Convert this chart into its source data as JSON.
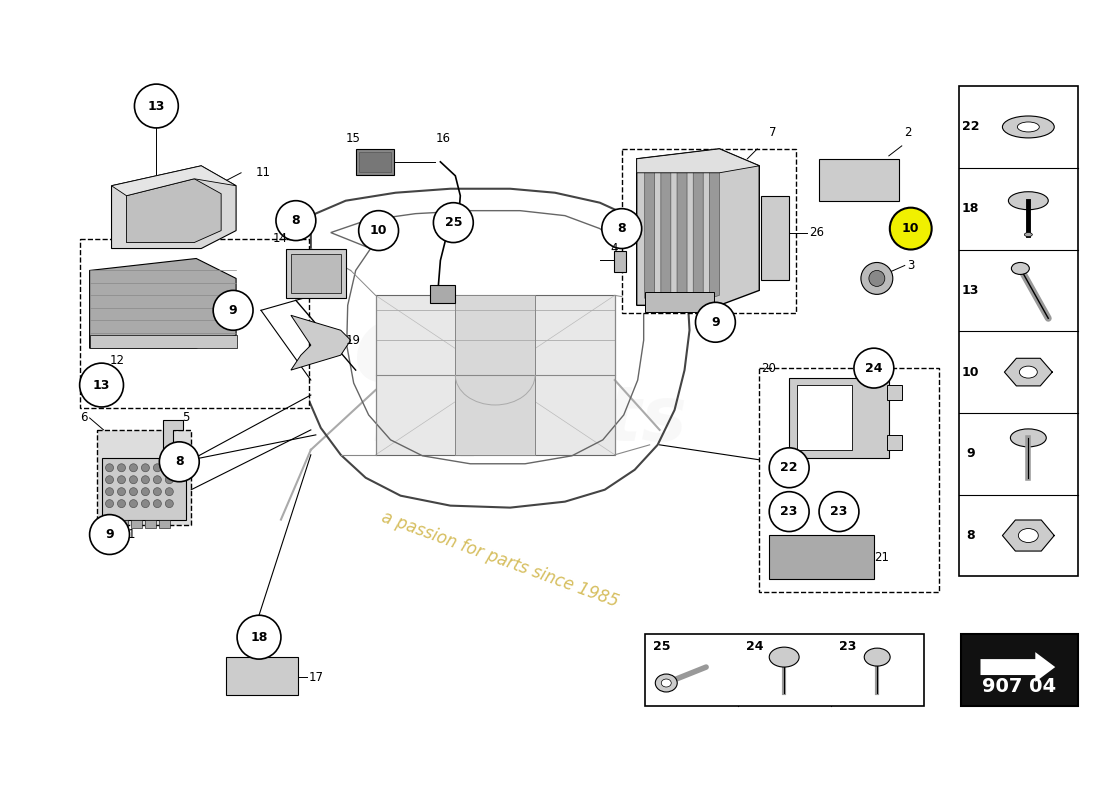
{
  "bg_color": "#ffffff",
  "line_color": "#000000",
  "watermark_color": "#c8a828",
  "watermark_text": "a passion for parts since 1985",
  "part_number": "907 04",
  "fig_w": 11.0,
  "fig_h": 8.0,
  "dpi": 100
}
